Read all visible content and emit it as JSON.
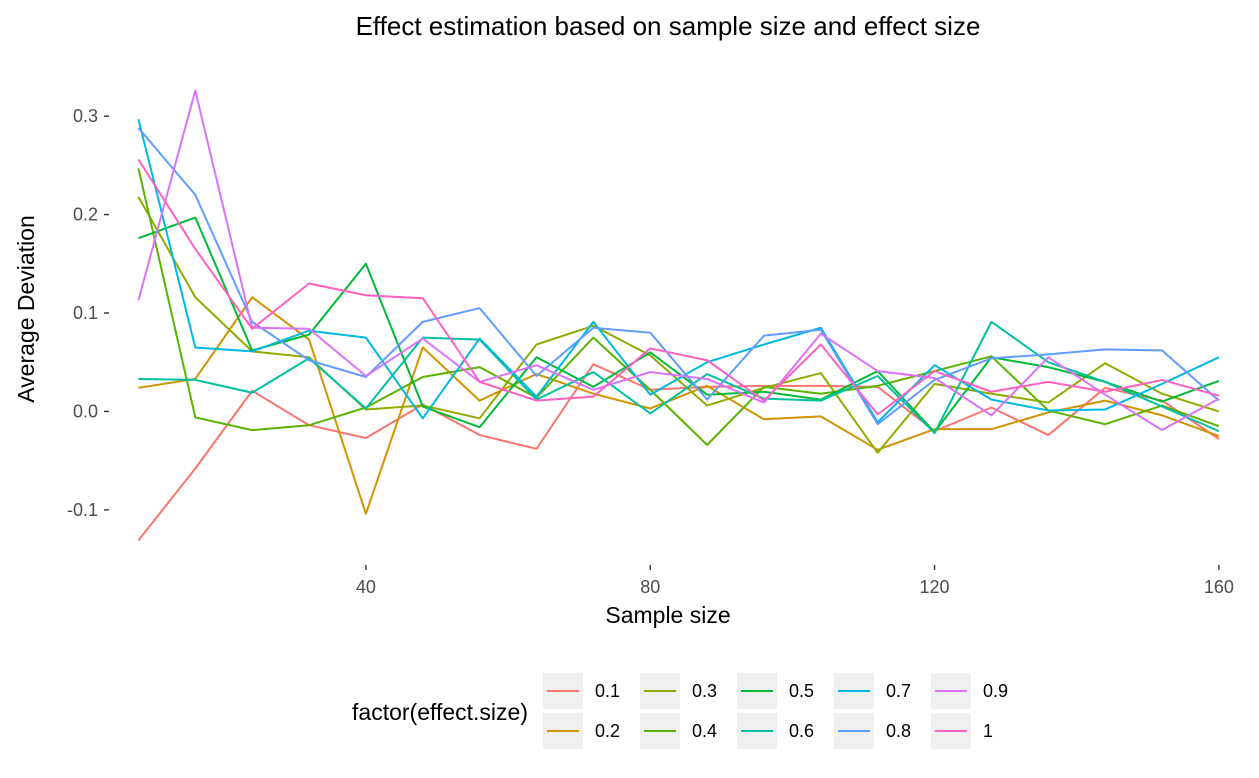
{
  "chart_data": {
    "type": "line",
    "title": "Effect estimation based on sample size and effect size",
    "xlabel": "Sample size",
    "ylabel": "Average Deviation",
    "xlim": [
      4,
      161
    ],
    "ylim": [
      -0.155,
      0.355
    ],
    "x_ticks": [
      40,
      80,
      120,
      160
    ],
    "x_tick_labels": [
      "40",
      "80",
      "120",
      "160"
    ],
    "y_ticks": [
      -0.1,
      0.0,
      0.1,
      0.2,
      0.3
    ],
    "y_tick_labels": [
      "-0.1",
      "0.0",
      "0.1",
      "0.2",
      "0.3"
    ],
    "grid": false,
    "legend": {
      "title": "factor(effect.size)",
      "position": "bottom"
    },
    "x": [
      8,
      16,
      24,
      32,
      40,
      48,
      56,
      64,
      72,
      80,
      88,
      96,
      104,
      112,
      120,
      128,
      136,
      144,
      152,
      160
    ],
    "series": [
      {
        "name": "0.1",
        "color": "#F8766D",
        "values": [
          -0.131,
          -0.058,
          0.021,
          -0.014,
          -0.027,
          0.007,
          -0.024,
          -0.038,
          0.048,
          0.022,
          0.025,
          0.026,
          0.026,
          0.025,
          -0.02,
          0.004,
          -0.024,
          0.024,
          0.011,
          -0.028
        ]
      },
      {
        "name": "0.2",
        "color": "#D39200",
        "values": [
          0.024,
          0.033,
          0.116,
          0.073,
          -0.104,
          0.065,
          0.011,
          0.038,
          0.018,
          0.003,
          0.026,
          -0.008,
          -0.005,
          -0.039,
          -0.018,
          -0.018,
          -0.001,
          0.011,
          -0.004,
          -0.025
        ]
      },
      {
        "name": "0.3",
        "color": "#93AA00",
        "values": [
          0.218,
          0.116,
          0.061,
          0.055,
          0.002,
          0.006,
          -0.007,
          0.068,
          0.087,
          0.057,
          0.006,
          0.024,
          0.039,
          -0.042,
          0.028,
          0.018,
          0.009,
          0.049,
          0.018,
          0.0
        ]
      },
      {
        "name": "0.4",
        "color": "#5BB300",
        "values": [
          0.247,
          -0.006,
          -0.019,
          -0.014,
          0.004,
          0.035,
          0.045,
          0.014,
          0.075,
          0.022,
          -0.034,
          0.025,
          0.018,
          0.026,
          0.041,
          0.056,
          0.001,
          -0.013,
          0.006,
          -0.015
        ]
      },
      {
        "name": "0.5",
        "color": "#00BA38",
        "values": [
          0.176,
          0.197,
          0.062,
          0.078,
          0.15,
          0.005,
          -0.016,
          0.055,
          0.025,
          0.06,
          0.017,
          0.02,
          0.012,
          0.041,
          -0.021,
          0.055,
          0.045,
          0.03,
          0.01,
          0.031
        ]
      },
      {
        "name": "0.6",
        "color": "#00C19F",
        "values": [
          0.033,
          0.032,
          0.019,
          0.054,
          0.003,
          0.075,
          0.073,
          0.012,
          0.04,
          -0.002,
          0.038,
          0.013,
          0.011,
          0.036,
          -0.022,
          0.091,
          0.05,
          0.03,
          0.005,
          -0.02
        ]
      },
      {
        "name": "0.7",
        "color": "#00B9E3",
        "values": [
          0.297,
          0.065,
          0.061,
          0.082,
          0.075,
          -0.007,
          0.074,
          0.015,
          0.091,
          0.017,
          0.05,
          0.068,
          0.085,
          -0.011,
          0.047,
          0.012,
          0.001,
          0.002,
          0.028,
          0.055
        ]
      },
      {
        "name": "0.8",
        "color": "#619CFF",
        "values": [
          0.288,
          0.22,
          0.091,
          0.052,
          0.035,
          0.091,
          0.105,
          0.036,
          0.085,
          0.08,
          0.012,
          0.077,
          0.083,
          -0.013,
          0.032,
          0.054,
          0.058,
          0.063,
          0.062,
          0.011
        ]
      },
      {
        "name": "0.9",
        "color": "#DB72FB",
        "values": [
          0.113,
          0.326,
          0.085,
          0.084,
          0.036,
          0.074,
          0.03,
          0.047,
          0.022,
          0.04,
          0.033,
          0.009,
          0.079,
          0.041,
          0.034,
          -0.004,
          0.055,
          0.017,
          -0.019,
          0.013
        ]
      },
      {
        "name": "1",
        "color": "#FF61C3",
        "values": [
          0.256,
          0.165,
          0.084,
          0.13,
          0.118,
          0.115,
          0.03,
          0.011,
          0.015,
          0.064,
          0.052,
          0.011,
          0.068,
          -0.003,
          0.041,
          0.02,
          0.03,
          0.02,
          0.032,
          0.016
        ]
      }
    ]
  }
}
